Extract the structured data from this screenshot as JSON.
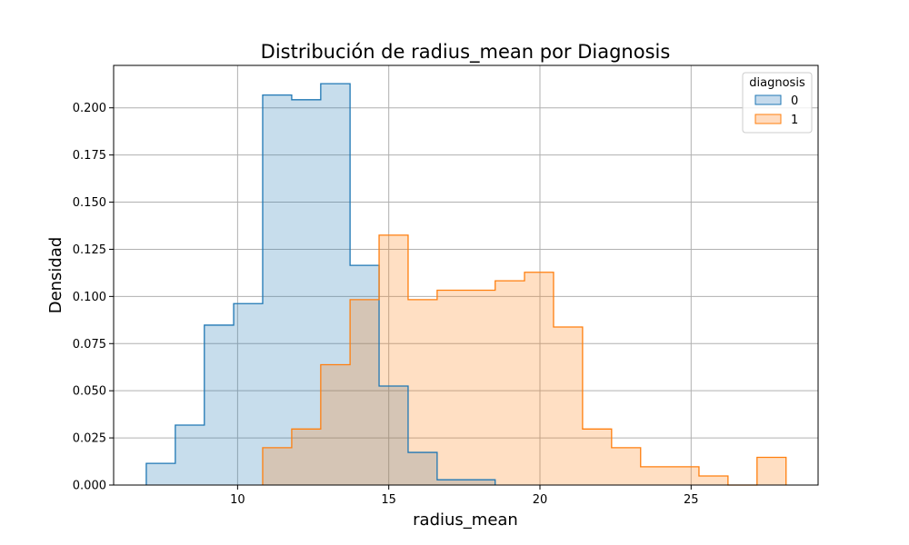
{
  "chart_data": {
    "type": "histogram",
    "title": "Distribución de radius_mean por Diagnosis",
    "xlabel": "radius_mean",
    "ylabel": "Densidad",
    "xlim": [
      5.9,
      29.2
    ],
    "ylim": [
      0,
      0.2225
    ],
    "xticks": [
      10,
      15,
      20,
      25
    ],
    "xtick_labels": [
      "10",
      "15",
      "20",
      "25"
    ],
    "yticks": [
      0,
      0.025,
      0.05,
      0.075,
      0.1,
      0.125,
      0.15,
      0.175,
      0.2
    ],
    "ytick_labels": [
      "0.000",
      "0.025",
      "0.050",
      "0.075",
      "0.100",
      "0.125",
      "0.150",
      "0.175",
      "0.200"
    ],
    "grid": true,
    "legend": {
      "title": "diagnosis",
      "position": "top-right"
    },
    "bin_edges": [
      6.98,
      7.94,
      8.9,
      9.87,
      10.83,
      11.79,
      12.75,
      13.72,
      14.68,
      15.64,
      16.6,
      17.56,
      18.52,
      19.49,
      20.45,
      21.41,
      22.37,
      23.33,
      24.3,
      25.26,
      26.22,
      27.18,
      28.14
    ],
    "series": [
      {
        "name": "0",
        "color": "#1f77b4",
        "fill": "#c5daec",
        "values": [
          0.0115,
          0.0318,
          0.0848,
          0.0962,
          0.2068,
          0.2043,
          0.2128,
          0.1165,
          0.0525,
          0.0173,
          0.0028,
          0.0028,
          0,
          0,
          0,
          0,
          0,
          0,
          0,
          0,
          0,
          0
        ]
      },
      {
        "name": "1",
        "color": "#ff7f0e",
        "fill": "#ffdbbf",
        "values": [
          0,
          0,
          0,
          0,
          0.0198,
          0.0297,
          0.0638,
          0.0983,
          0.1325,
          0.0983,
          0.1033,
          0.1033,
          0.1083,
          0.1128,
          0.0838,
          0.0297,
          0.0198,
          0.0097,
          0.0097,
          0.0048,
          0,
          0.0147
        ]
      }
    ]
  }
}
